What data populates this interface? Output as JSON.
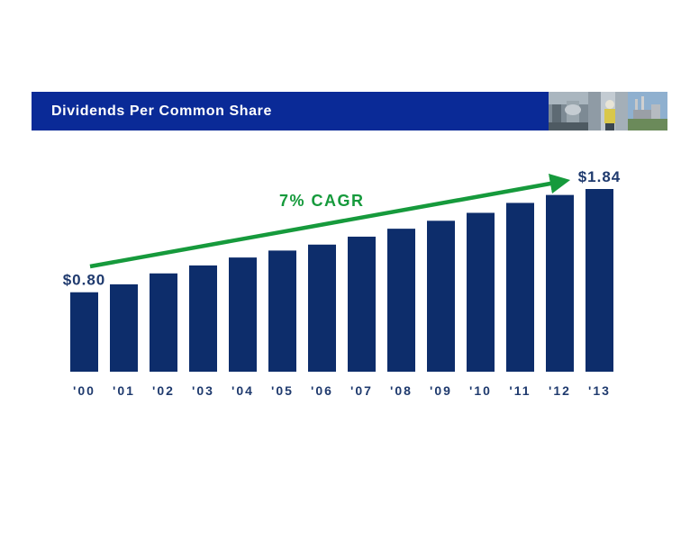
{
  "header": {
    "title": "Dividends Per Common Share"
  },
  "colors": {
    "bar": "#0d2d6b",
    "header": "#0a2a97",
    "arrow": "#169a3c",
    "label": "#1f3a6e"
  },
  "chart_data": {
    "type": "bar",
    "title": "",
    "categories": [
      "'00",
      "'01",
      "'02",
      "'03",
      "'04",
      "'05",
      "'06",
      "'07",
      "'08",
      "'09",
      "'10",
      "'11",
      "'12",
      "'13"
    ],
    "values": [
      0.8,
      0.88,
      0.99,
      1.07,
      1.15,
      1.22,
      1.28,
      1.36,
      1.44,
      1.52,
      1.6,
      1.7,
      1.78,
      1.84
    ],
    "ylim": [
      0,
      1.84
    ],
    "xlabel": "",
    "ylabel": "",
    "data_labels": [
      {
        "index": 0,
        "text": "$0.80"
      },
      {
        "index": 13,
        "text": "$1.84"
      }
    ],
    "annotation": {
      "text": "7% CAGR",
      "from_index": 0,
      "to_index": 12
    },
    "grid": false
  }
}
